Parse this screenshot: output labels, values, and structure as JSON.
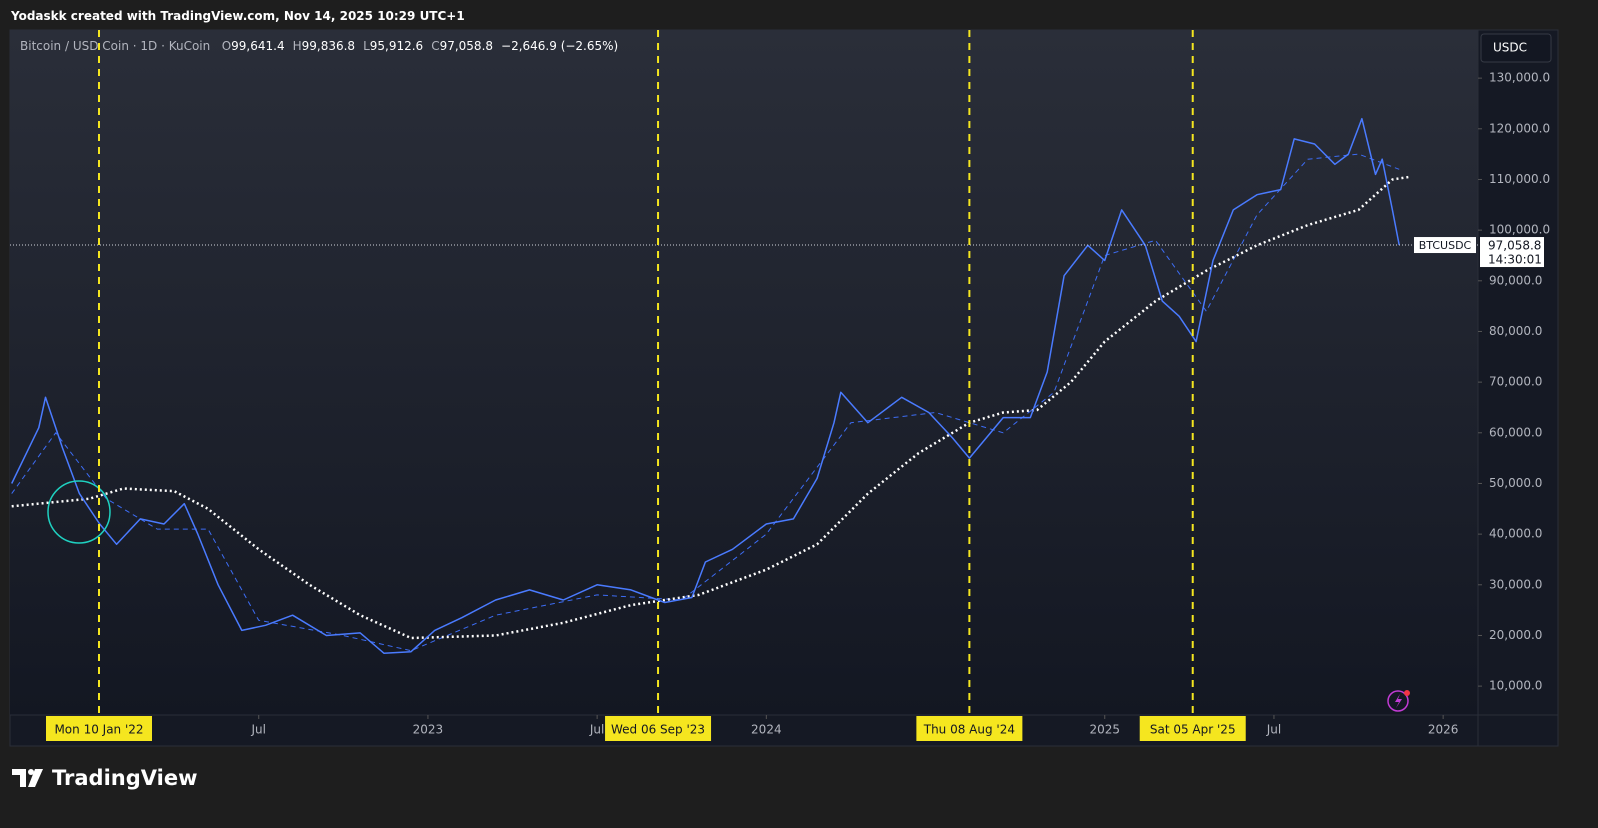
{
  "chart_data": {
    "type": "line",
    "credit": "Yodaskk created with TradingView.com, Nov 14, 2025 10:29 UTC+1",
    "title": "Bitcoin / USD Coin · 1D · KuCoin",
    "ohlc": [
      {
        "key": "O",
        "value": "99,641.4"
      },
      {
        "key": "H",
        "value": "99,836.8"
      },
      {
        "key": "L",
        "value": "95,912.6"
      },
      {
        "key": "C",
        "value": "97,058.8"
      }
    ],
    "change": "−2,646.9 (−2.65%)",
    "currency": "USDC",
    "symbol": "BTCUSDC",
    "last_price": 97058.8,
    "last_price_label": "97,058.8",
    "countdown": "14:30:01",
    "brand": "TradingView",
    "xlim": [
      2021.765,
      2026.103
    ],
    "xticks": [
      {
        "value": 2022.5,
        "label": "Jul"
      },
      {
        "value": 2023,
        "label": "2023"
      },
      {
        "value": 2023.5,
        "label": "Jul"
      },
      {
        "value": 2024,
        "label": "2024"
      },
      {
        "value": 2025,
        "label": "2025"
      },
      {
        "value": 2025.5,
        "label": "Jul"
      },
      {
        "value": 2026,
        "label": "2026"
      }
    ],
    "ylim": [
      4300,
      139500
    ],
    "yticks": [
      {
        "value": 10000,
        "label": "10,000.0"
      },
      {
        "value": 20000,
        "label": "20,000.0"
      },
      {
        "value": 30000,
        "label": "30,000.0"
      },
      {
        "value": 40000,
        "label": "40,000.0"
      },
      {
        "value": 50000,
        "label": "50,000.0"
      },
      {
        "value": 60000,
        "label": "60,000.0"
      },
      {
        "value": 70000,
        "label": "70,000.0"
      },
      {
        "value": 80000,
        "label": "80,000.0"
      },
      {
        "value": 90000,
        "label": "90,000.0"
      },
      {
        "value": 100000,
        "label": "100,000.0"
      },
      {
        "value": 110000,
        "label": "110,000.0"
      },
      {
        "value": 120000,
        "label": "120,000.0"
      },
      {
        "value": 130000,
        "label": "130,000.0"
      }
    ],
    "annotations": [
      {
        "x": 2022.028,
        "label": "Mon 10 Jan '22"
      },
      {
        "x": 2023.68,
        "label": "Wed 06 Sep '23"
      },
      {
        "x": 2024.6,
        "label": "Thu 08 Aug '24"
      },
      {
        "x": 2025.26,
        "label": "Sat 05 Apr '25"
      }
    ],
    "annotation_color": "#f5e61f",
    "series": [
      {
        "color": "#3d6df5",
        "dash": "5,4",
        "width": 1,
        "x": [
          2021.77,
          2021.9,
          2022.05,
          2022.2,
          2022.35,
          2022.5,
          2022.75,
          2022.95,
          2023.2,
          2023.5,
          2023.75,
          2024.0,
          2024.25,
          2024.5,
          2024.7,
          2024.85,
          2025.0,
          2025.15,
          2025.3,
          2025.45,
          2025.6,
          2025.75,
          2025.87
        ],
        "values": [
          48000,
          60000,
          47000,
          41000,
          41000,
          23000,
          20000,
          17000,
          24000,
          28000,
          27000,
          40000,
          62000,
          64000,
          60000,
          68000,
          95000,
          98000,
          84000,
          103000,
          114000,
          115000,
          112000
        ]
      },
      {
        "color": "#ffffff",
        "dash": "2,3",
        "width": 2.5,
        "x": [
          2021.77,
          2022.0,
          2022.1,
          2022.25,
          2022.35,
          2022.5,
          2022.65,
          2022.8,
          2022.95,
          2023.2,
          2023.4,
          2023.6,
          2023.8,
          2024.0,
          2024.15,
          2024.3,
          2024.45,
          2024.6,
          2024.7,
          2024.8,
          2024.9,
          2025.0,
          2025.15,
          2025.3,
          2025.45,
          2025.6,
          2025.75,
          2025.85,
          2025.9
        ],
        "values": [
          45500,
          47000,
          49000,
          48500,
          45000,
          37000,
          30000,
          24000,
          19500,
          20000,
          22500,
          26000,
          28000,
          33000,
          38000,
          48000,
          56000,
          62000,
          64000,
          64500,
          70000,
          78000,
          86000,
          92000,
          97000,
          101000,
          104000,
          110000,
          110500
        ]
      },
      {
        "color": "#4a7bff",
        "dash": "",
        "width": 1.5,
        "x": [
          2021.77,
          2021.85,
          2021.87,
          2021.92,
          2021.97,
          2022.03,
          2022.08,
          2022.15,
          2022.22,
          2022.28,
          2022.32,
          2022.38,
          2022.45,
          2022.52,
          2022.6,
          2022.7,
          2022.8,
          2022.87,
          2022.95,
          2023.02,
          2023.1,
          2023.2,
          2023.3,
          2023.4,
          2023.5,
          2023.6,
          2023.7,
          2023.78,
          2023.82,
          2023.9,
          2024.0,
          2024.08,
          2024.15,
          2024.2,
          2024.22,
          2024.3,
          2024.4,
          2024.48,
          2024.55,
          2024.6,
          2024.7,
          2024.78,
          2024.83,
          2024.88,
          2024.95,
          2025.0,
          2025.05,
          2025.12,
          2025.17,
          2025.22,
          2025.27,
          2025.32,
          2025.38,
          2025.45,
          2025.52,
          2025.56,
          2025.62,
          2025.68,
          2025.72,
          2025.76,
          2025.8,
          2025.82,
          2025.85,
          2025.87
        ],
        "values": [
          50000,
          61000,
          67000,
          57000,
          48000,
          42000,
          38000,
          43000,
          42000,
          46000,
          40000,
          30000,
          21000,
          22000,
          24000,
          20000,
          20500,
          16500,
          16800,
          21000,
          23500,
          27000,
          29000,
          27000,
          30000,
          29000,
          26500,
          27500,
          34500,
          37000,
          42000,
          43000,
          51000,
          62000,
          68000,
          62000,
          67000,
          64000,
          59000,
          55000,
          63000,
          63000,
          72000,
          91000,
          97000,
          94000,
          104000,
          97000,
          86000,
          83000,
          78000,
          94000,
          104000,
          107000,
          108000,
          118000,
          117000,
          113000,
          115000,
          122000,
          111000,
          114000,
          104000,
          97058.8
        ]
      }
    ]
  }
}
